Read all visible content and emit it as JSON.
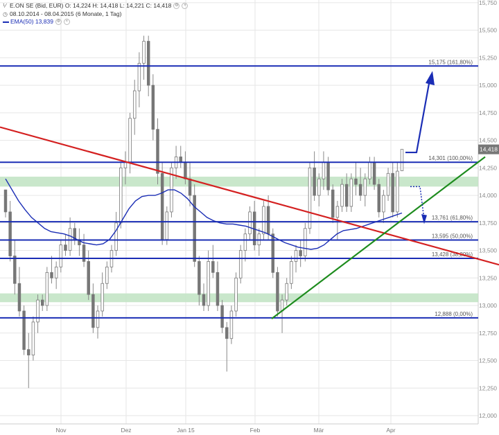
{
  "header": {
    "symbol_line": "E.ON SE (Bid, EUR)  O: 14,224  H: 14,418  L: 14,221  C: 14,418",
    "period_line": "08.10.2014 - 08.04.2015 (6 Monate, 1 Tag)",
    "ema_label": "EMA(50)",
    "ema_value": "13,839"
  },
  "chart_data": {
    "type": "candlestick",
    "title": "E.ON SE (Bid, EUR)",
    "ylim": [
      12.0,
      15.85
    ],
    "y_ticks": [
      "15,750",
      "15,500",
      "15,250",
      "15,000",
      "14,750",
      "14,500",
      "14,250",
      "14,000",
      "13,750",
      "13,500",
      "13,250",
      "13,000",
      "12,750",
      "12,500",
      "12,250",
      "12,000"
    ],
    "x_ticks": [
      "Nov",
      "Dez",
      "Jan 15",
      "Feb",
      "Mär",
      "Apr"
    ],
    "last_price_label": "14,418",
    "fib_levels": [
      {
        "value": 15.175,
        "label": "15,175 (161,80%)"
      },
      {
        "value": 14.301,
        "label": "14,301 (100,00%)"
      },
      {
        "value": 13.761,
        "label": "13,761 (61,80%)"
      },
      {
        "value": 13.595,
        "label": "13,595 (50,00%)"
      },
      {
        "value": 13.428,
        "label": "13,428 (38,20%)"
      },
      {
        "value": 12.888,
        "label": "12,888 (0,00%)"
      }
    ],
    "support_zones": [
      [
        14.08,
        14.17
      ],
      [
        13.03,
        13.11
      ]
    ],
    "candles": [
      [
        14.05,
        14.05,
        13.8,
        13.85
      ],
      [
        13.85,
        13.95,
        13.4,
        13.45
      ],
      [
        13.45,
        13.6,
        13.1,
        13.2
      ],
      [
        13.2,
        13.35,
        12.9,
        12.95
      ],
      [
        12.95,
        13.0,
        12.55,
        12.6
      ],
      [
        12.6,
        12.75,
        12.25,
        12.55
      ],
      [
        12.55,
        12.9,
        12.5,
        12.85
      ],
      [
        12.85,
        13.1,
        12.75,
        13.05
      ],
      [
        13.05,
        13.1,
        12.95,
        13.0
      ],
      [
        13.0,
        13.35,
        12.95,
        13.3
      ],
      [
        13.3,
        13.45,
        13.2,
        13.25
      ],
      [
        13.25,
        13.4,
        13.15,
        13.35
      ],
      [
        13.35,
        13.6,
        13.3,
        13.55
      ],
      [
        13.55,
        13.65,
        13.45,
        13.5
      ],
      [
        13.5,
        13.8,
        13.45,
        13.7
      ],
      [
        13.7,
        13.75,
        13.55,
        13.6
      ],
      [
        13.6,
        13.7,
        13.45,
        13.55
      ],
      [
        13.55,
        13.65,
        13.35,
        13.4
      ],
      [
        13.4,
        13.5,
        13.05,
        13.1
      ],
      [
        13.1,
        13.2,
        12.75,
        12.8
      ],
      [
        12.8,
        13.0,
        12.7,
        12.95
      ],
      [
        12.95,
        13.3,
        12.9,
        13.2
      ],
      [
        13.2,
        13.4,
        13.15,
        13.35
      ],
      [
        13.35,
        13.55,
        13.3,
        13.5
      ],
      [
        13.5,
        13.85,
        13.45,
        13.75
      ],
      [
        13.75,
        14.3,
        13.7,
        14.25
      ],
      [
        14.25,
        14.4,
        14.1,
        14.3
      ],
      [
        14.3,
        14.75,
        14.2,
        14.7
      ],
      [
        14.7,
        15.05,
        14.55,
        14.95
      ],
      [
        14.95,
        15.3,
        14.8,
        15.2
      ],
      [
        15.2,
        15.45,
        15.05,
        15.4
      ],
      [
        15.4,
        15.45,
        14.9,
        15.0
      ],
      [
        15.0,
        15.1,
        14.5,
        14.6
      ],
      [
        14.6,
        14.7,
        14.1,
        14.2
      ],
      [
        14.2,
        14.3,
        13.55,
        13.6
      ],
      [
        13.6,
        13.9,
        13.55,
        13.85
      ],
      [
        13.85,
        14.3,
        13.8,
        14.25
      ],
      [
        14.25,
        14.45,
        14.15,
        14.35
      ],
      [
        14.35,
        14.45,
        14.25,
        14.3
      ],
      [
        14.3,
        14.4,
        14.1,
        14.15
      ],
      [
        14.15,
        14.3,
        13.9,
        14.0
      ],
      [
        14.0,
        14.1,
        13.35,
        13.4
      ],
      [
        13.4,
        13.45,
        13.0,
        13.1
      ],
      [
        13.1,
        13.2,
        12.95,
        13.0
      ],
      [
        13.0,
        13.5,
        12.95,
        13.4
      ],
      [
        13.4,
        13.55,
        13.25,
        13.3
      ],
      [
        13.3,
        13.4,
        12.95,
        13.0
      ],
      [
        13.0,
        13.05,
        12.75,
        12.8
      ],
      [
        12.8,
        12.85,
        12.4,
        12.7
      ],
      [
        12.7,
        13.0,
        12.65,
        12.95
      ],
      [
        12.95,
        13.3,
        12.9,
        13.25
      ],
      [
        13.25,
        13.55,
        13.2,
        13.5
      ],
      [
        13.5,
        13.7,
        13.4,
        13.65
      ],
      [
        13.65,
        13.9,
        13.6,
        13.85
      ],
      [
        13.85,
        13.95,
        13.5,
        13.55
      ],
      [
        13.55,
        13.7,
        13.45,
        13.65
      ],
      [
        13.65,
        13.95,
        13.6,
        13.9
      ],
      [
        13.9,
        14.0,
        13.6,
        13.65
      ],
      [
        13.65,
        13.7,
        13.25,
        13.3
      ],
      [
        13.3,
        13.35,
        12.9,
        12.95
      ],
      [
        12.95,
        13.1,
        12.75,
        13.05
      ],
      [
        13.05,
        13.25,
        13.0,
        13.2
      ],
      [
        13.2,
        13.45,
        13.15,
        13.4
      ],
      [
        13.4,
        13.55,
        13.3,
        13.5
      ],
      [
        13.5,
        13.6,
        13.35,
        13.45
      ],
      [
        13.45,
        13.75,
        13.4,
        13.7
      ],
      [
        13.7,
        14.3,
        13.65,
        14.25
      ],
      [
        14.25,
        14.4,
        13.95,
        14.0
      ],
      [
        14.0,
        14.2,
        13.9,
        14.15
      ],
      [
        14.15,
        14.4,
        14.05,
        14.3
      ],
      [
        14.3,
        14.35,
        14.0,
        14.05
      ],
      [
        14.05,
        14.1,
        13.75,
        13.8
      ],
      [
        13.8,
        13.95,
        13.6,
        13.9
      ],
      [
        13.9,
        14.15,
        13.85,
        14.1
      ],
      [
        14.1,
        14.2,
        13.85,
        13.9
      ],
      [
        13.9,
        14.2,
        13.85,
        14.15
      ],
      [
        14.15,
        14.3,
        14.0,
        14.1
      ],
      [
        14.1,
        14.25,
        13.95,
        14.0
      ],
      [
        14.0,
        14.2,
        13.9,
        14.15
      ],
      [
        14.15,
        14.35,
        14.1,
        14.3
      ],
      [
        14.3,
        14.35,
        14.05,
        14.1
      ],
      [
        14.1,
        14.15,
        13.8,
        13.85
      ],
      [
        13.85,
        14.05,
        13.75,
        14.0
      ],
      [
        14.0,
        14.25,
        13.95,
        14.2
      ],
      [
        14.2,
        14.3,
        13.8,
        13.85
      ],
      [
        13.85,
        14.3,
        13.8,
        14.22
      ],
      [
        14.224,
        14.418,
        14.221,
        14.418
      ]
    ],
    "ema50": [
      14.15,
      14.05,
      13.95,
      13.87,
      13.8,
      13.75,
      13.7,
      13.67,
      13.66,
      13.65,
      13.63,
      13.6,
      13.57,
      13.56,
      13.55,
      13.56,
      13.6,
      13.68,
      13.78,
      13.88,
      13.95,
      13.99,
      14.0,
      14.0,
      14.02,
      14.05,
      14.05,
      14.02,
      13.97,
      13.9,
      13.85,
      13.8,
      13.77,
      13.75,
      13.74,
      13.74,
      13.73,
      13.72,
      13.7,
      13.68,
      13.66,
      13.63,
      13.6,
      13.57,
      13.55,
      13.53,
      13.52,
      13.51,
      13.52,
      13.55,
      13.6,
      13.65,
      13.68,
      13.69,
      13.7,
      13.72,
      13.74,
      13.76,
      13.78,
      13.8,
      13.82,
      13.84
    ]
  }
}
